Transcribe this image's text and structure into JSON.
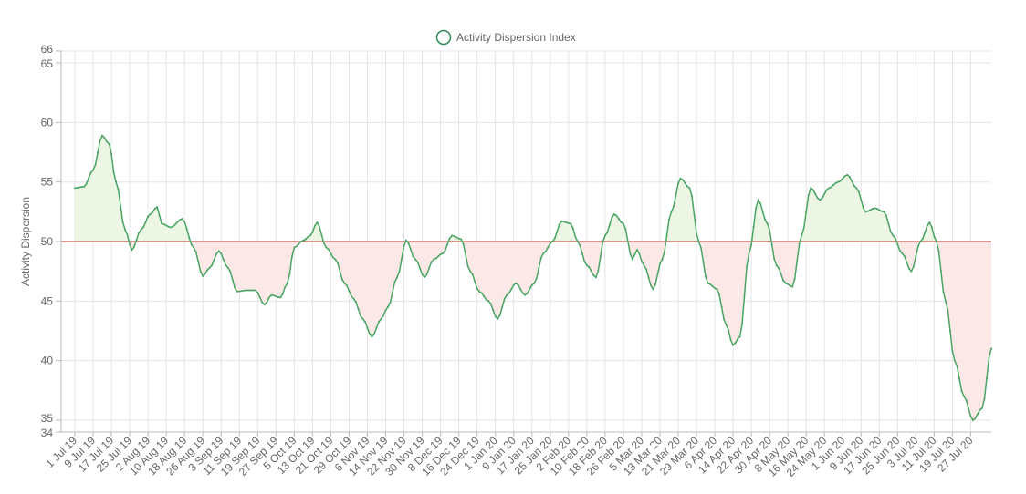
{
  "chart_data": {
    "type": "line",
    "legend": {
      "label": "Activity Dispersion Index",
      "position": "top-center"
    },
    "ylabel": "Activity Dispersion",
    "ylim": [
      34,
      66
    ],
    "y_ticks": [
      34,
      35,
      40,
      45,
      50,
      55,
      60,
      65,
      66
    ],
    "x_ticks": [
      "1 Jul 19",
      "9 Jul 19",
      "17 Jul 19",
      "25 Jul 19",
      "2 Aug 19",
      "10 Aug 19",
      "18 Aug 19",
      "26 Aug 19",
      "3 Sep 19",
      "11 Sep 19",
      "19 Sep 19",
      "27 Sep 19",
      "5 Oct 19",
      "13 Oct 19",
      "21 Oct 19",
      "29 Oct 19",
      "6 Nov 19",
      "14 Nov 19",
      "22 Nov 19",
      "30 Nov 19",
      "8 Dec 19",
      "16 Dec 19",
      "24 Dec 19",
      "1 Jan 20",
      "9 Jan 20",
      "17 Jan 20",
      "25 Jan 20",
      "2 Feb 20",
      "10 Feb 20",
      "18 Feb 20",
      "26 Feb 20",
      "5 Mar 20",
      "13 Mar 20",
      "21 Mar 20",
      "29 Mar 20",
      "6 Apr 20",
      "14 Apr 20",
      "22 Apr 20",
      "30 Apr 20",
      "8 May 20",
      "16 May 20",
      "24 May 20",
      "1 Jun 20",
      "9 Jun 20",
      "17 Jun 20",
      "25 Jun 20",
      "3 Jul 20",
      "11 Jul 20",
      "19 Jul 20",
      "27 Jul 20"
    ],
    "baseline": 50,
    "grid": true,
    "colors": {
      "line": "#4aa564",
      "point": "#4aa564",
      "above_fill": "#edf6e4",
      "below_fill": "#fde8e8",
      "baseline": "#b03a2e",
      "grid": "#e5e5e5",
      "axis": "#bbbbbb",
      "legend_circle": "#2e8b57"
    },
    "series": [
      {
        "name": "Activity Dispersion Index",
        "values": [
          {
            "date": "2019-07-01",
            "y": 54.5
          },
          {
            "date": "2019-07-05",
            "y": 54.6
          },
          {
            "date": "2019-07-09",
            "y": 56.0
          },
          {
            "date": "2019-07-13",
            "y": 58.9
          },
          {
            "date": "2019-07-16",
            "y": 58.2
          },
          {
            "date": "2019-07-19",
            "y": 55.0
          },
          {
            "date": "2019-07-23",
            "y": 51.0
          },
          {
            "date": "2019-07-26",
            "y": 49.3
          },
          {
            "date": "2019-07-30",
            "y": 51.0
          },
          {
            "date": "2019-08-03",
            "y": 52.3
          },
          {
            "date": "2019-08-06",
            "y": 52.9
          },
          {
            "date": "2019-08-08",
            "y": 51.5
          },
          {
            "date": "2019-08-12",
            "y": 51.2
          },
          {
            "date": "2019-08-17",
            "y": 51.9
          },
          {
            "date": "2019-08-22",
            "y": 49.5
          },
          {
            "date": "2019-08-26",
            "y": 47.1
          },
          {
            "date": "2019-08-29",
            "y": 47.8
          },
          {
            "date": "2019-09-02",
            "y": 49.2
          },
          {
            "date": "2019-09-06",
            "y": 47.8
          },
          {
            "date": "2019-09-10",
            "y": 45.8
          },
          {
            "date": "2019-09-14",
            "y": 45.9
          },
          {
            "date": "2019-09-18",
            "y": 45.9
          },
          {
            "date": "2019-09-22",
            "y": 44.7
          },
          {
            "date": "2019-09-25",
            "y": 45.5
          },
          {
            "date": "2019-09-29",
            "y": 45.3
          },
          {
            "date": "2019-10-02",
            "y": 46.5
          },
          {
            "date": "2019-10-05",
            "y": 49.5
          },
          {
            "date": "2019-10-09",
            "y": 50.1
          },
          {
            "date": "2019-10-12",
            "y": 50.5
          },
          {
            "date": "2019-10-15",
            "y": 51.6
          },
          {
            "date": "2019-10-19",
            "y": 49.5
          },
          {
            "date": "2019-10-23",
            "y": 48.5
          },
          {
            "date": "2019-10-27",
            "y": 46.5
          },
          {
            "date": "2019-10-31",
            "y": 45.2
          },
          {
            "date": "2019-11-04",
            "y": 43.5
          },
          {
            "date": "2019-11-08",
            "y": 42.0
          },
          {
            "date": "2019-11-12",
            "y": 43.5
          },
          {
            "date": "2019-11-15",
            "y": 44.5
          },
          {
            "date": "2019-11-19",
            "y": 47.0
          },
          {
            "date": "2019-11-23",
            "y": 50.1
          },
          {
            "date": "2019-11-27",
            "y": 48.5
          },
          {
            "date": "2019-12-01",
            "y": 47.0
          },
          {
            "date": "2019-12-05",
            "y": 48.5
          },
          {
            "date": "2019-12-09",
            "y": 49.0
          },
          {
            "date": "2019-12-13",
            "y": 50.5
          },
          {
            "date": "2019-12-17",
            "y": 50.2
          },
          {
            "date": "2019-12-21",
            "y": 47.5
          },
          {
            "date": "2019-12-25",
            "y": 45.8
          },
          {
            "date": "2019-12-29",
            "y": 45.0
          },
          {
            "date": "2020-01-02",
            "y": 43.5
          },
          {
            "date": "2020-01-06",
            "y": 45.5
          },
          {
            "date": "2020-01-10",
            "y": 46.5
          },
          {
            "date": "2020-01-14",
            "y": 45.5
          },
          {
            "date": "2020-01-18",
            "y": 46.5
          },
          {
            "date": "2020-01-22",
            "y": 49.0
          },
          {
            "date": "2020-01-26",
            "y": 50.0
          },
          {
            "date": "2020-01-30",
            "y": 51.7
          },
          {
            "date": "2020-02-03",
            "y": 51.5
          },
          {
            "date": "2020-02-06",
            "y": 50.0
          },
          {
            "date": "2020-02-10",
            "y": 48.0
          },
          {
            "date": "2020-02-14",
            "y": 47.0
          },
          {
            "date": "2020-02-18",
            "y": 50.5
          },
          {
            "date": "2020-02-22",
            "y": 52.3
          },
          {
            "date": "2020-02-26",
            "y": 51.5
          },
          {
            "date": "2020-03-01",
            "y": 48.5
          },
          {
            "date": "2020-03-03",
            "y": 49.3
          },
          {
            "date": "2020-03-06",
            "y": 48.0
          },
          {
            "date": "2020-03-10",
            "y": 46.0
          },
          {
            "date": "2020-03-14",
            "y": 48.5
          },
          {
            "date": "2020-03-18",
            "y": 52.5
          },
          {
            "date": "2020-03-22",
            "y": 55.3
          },
          {
            "date": "2020-03-26",
            "y": 54.5
          },
          {
            "date": "2020-03-30",
            "y": 50.0
          },
          {
            "date": "2020-04-03",
            "y": 46.5
          },
          {
            "date": "2020-04-07",
            "y": 46.0
          },
          {
            "date": "2020-04-11",
            "y": 43.0
          },
          {
            "date": "2020-04-14",
            "y": 41.3
          },
          {
            "date": "2020-04-17",
            "y": 42.0
          },
          {
            "date": "2020-04-21",
            "y": 49.0
          },
          {
            "date": "2020-04-25",
            "y": 53.5
          },
          {
            "date": "2020-04-29",
            "y": 51.5
          },
          {
            "date": "2020-05-03",
            "y": 48.0
          },
          {
            "date": "2020-05-07",
            "y": 46.5
          },
          {
            "date": "2020-05-10",
            "y": 46.2
          },
          {
            "date": "2020-05-14",
            "y": 50.5
          },
          {
            "date": "2020-05-18",
            "y": 54.5
          },
          {
            "date": "2020-05-22",
            "y": 53.5
          },
          {
            "date": "2020-05-26",
            "y": 54.5
          },
          {
            "date": "2020-05-30",
            "y": 55.0
          },
          {
            "date": "2020-06-03",
            "y": 55.6
          },
          {
            "date": "2020-06-07",
            "y": 54.5
          },
          {
            "date": "2020-06-11",
            "y": 52.5
          },
          {
            "date": "2020-06-15",
            "y": 52.8
          },
          {
            "date": "2020-06-19",
            "y": 52.5
          },
          {
            "date": "2020-06-23",
            "y": 50.5
          },
          {
            "date": "2020-06-27",
            "y": 49.0
          },
          {
            "date": "2020-07-01",
            "y": 47.5
          },
          {
            "date": "2020-07-05",
            "y": 50.0
          },
          {
            "date": "2020-07-09",
            "y": 51.6
          },
          {
            "date": "2020-07-12",
            "y": 50.0
          },
          {
            "date": "2020-07-16",
            "y": 45.0
          },
          {
            "date": "2020-07-20",
            "y": 40.0
          },
          {
            "date": "2020-07-24",
            "y": 37.0
          },
          {
            "date": "2020-07-28",
            "y": 35.0
          },
          {
            "date": "2020-08-01",
            "y": 36.0
          },
          {
            "date": "2020-08-05",
            "y": 41.0
          }
        ]
      }
    ]
  }
}
